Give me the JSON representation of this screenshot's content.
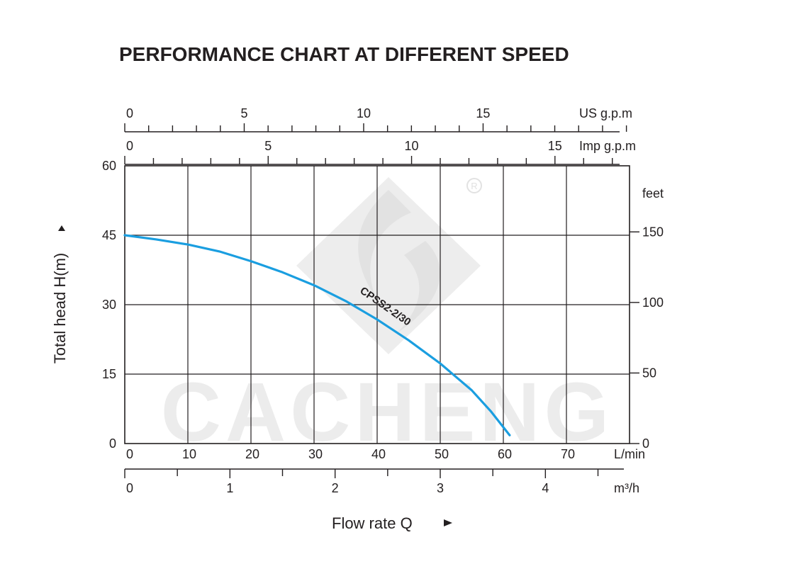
{
  "chart_data": {
    "type": "line",
    "title": "PERFORMANCE CHART AT DIFFERENT SPEED",
    "ylabel": "Total head H(m)",
    "xlabel": "Flow rate Q",
    "x_unit": "L/min",
    "xlim": [
      0,
      80
    ],
    "ylim": [
      0,
      60
    ],
    "x_ticks": [
      0,
      10,
      20,
      30,
      40,
      50,
      60,
      70
    ],
    "y_ticks": [
      0,
      15,
      30,
      45,
      60
    ],
    "grid": true,
    "series": [
      {
        "name": "CPSS2-2/30",
        "color": "#1a9ee0",
        "x": [
          0,
          5,
          10,
          15,
          20,
          25,
          30,
          35,
          40,
          45,
          50,
          55,
          58,
          61
        ],
        "y": [
          45,
          44.1,
          43,
          41.5,
          39.4,
          37,
          34.2,
          30.8,
          26.8,
          22.3,
          17.3,
          11.5,
          7,
          1.8
        ]
      }
    ],
    "secondary_axes": {
      "us_gpm": {
        "unit": "US g.p.m",
        "ticks": [
          0,
          5,
          10,
          15
        ],
        "max": 21.13
      },
      "imp_gpm": {
        "unit": "Imp g.p.m",
        "ticks": [
          0,
          5,
          10,
          15
        ],
        "max": 17.6
      },
      "m3h": {
        "unit": "m³/h",
        "ticks": [
          0,
          1,
          2,
          3,
          4
        ],
        "max": 4.8
      },
      "feet": {
        "unit": "feet",
        "ticks": [
          0,
          50,
          100,
          150
        ],
        "max": 196.85
      }
    },
    "watermark": "CACHENG"
  }
}
